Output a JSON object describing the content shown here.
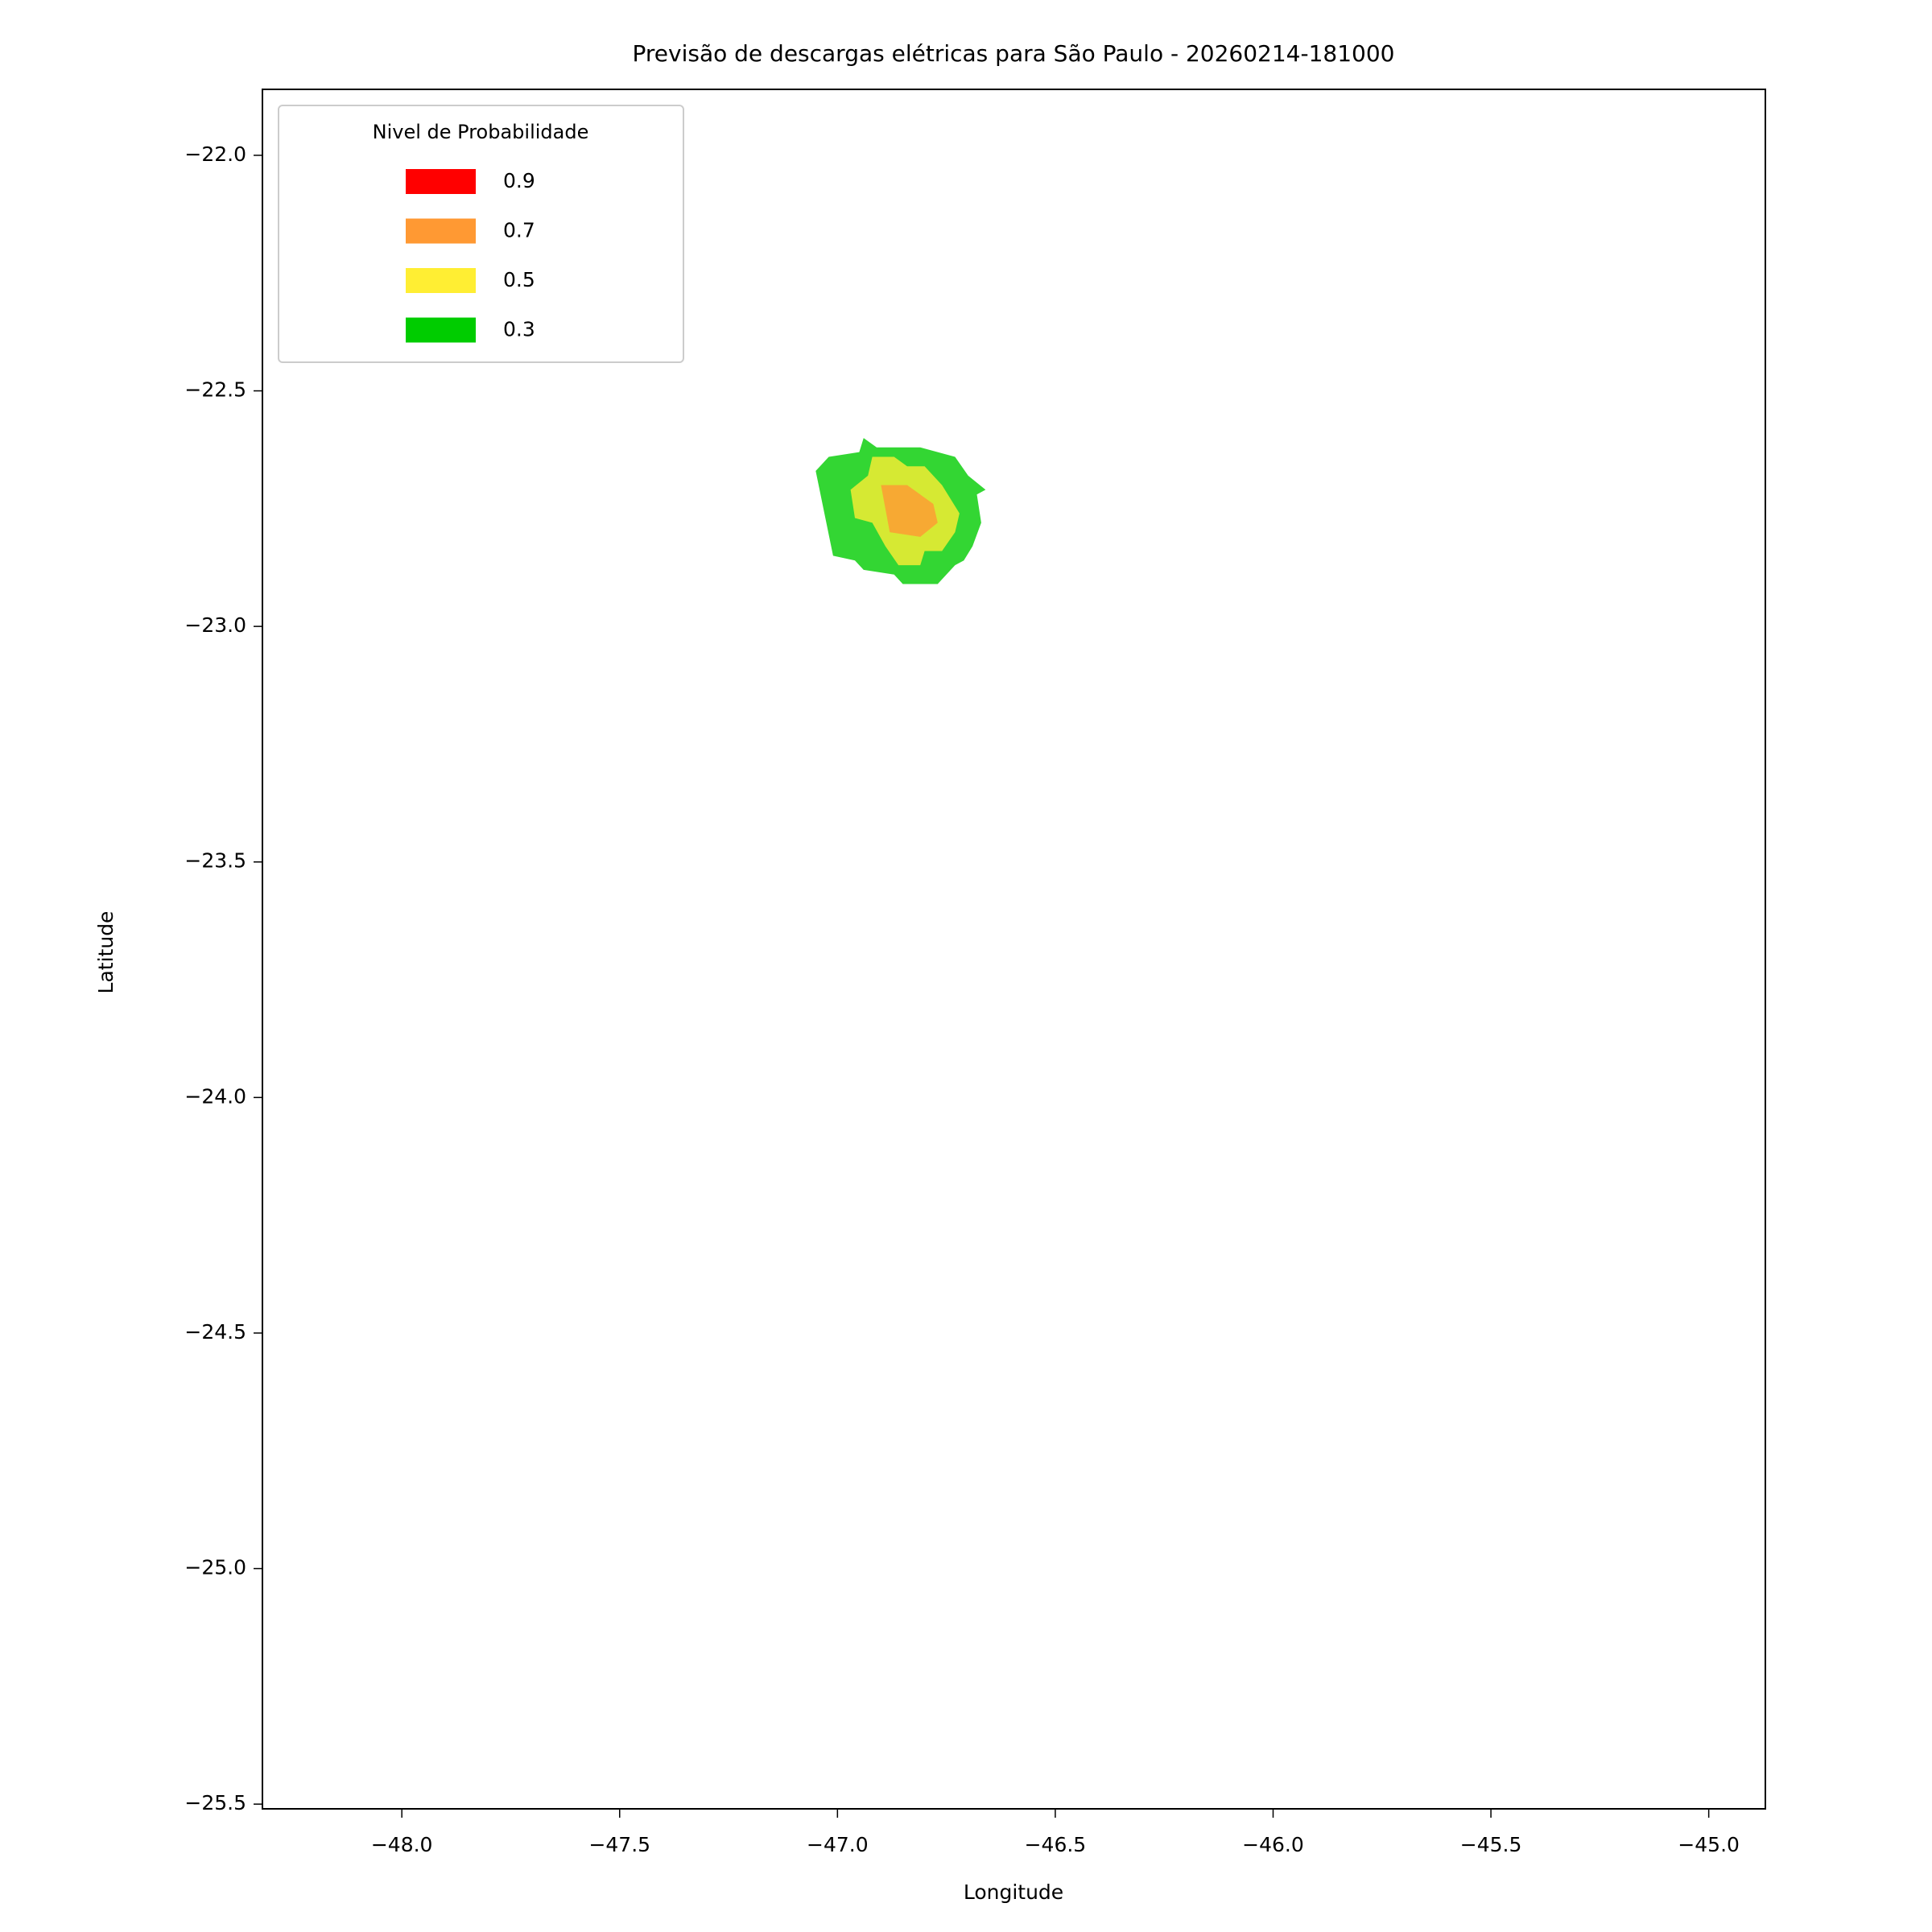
{
  "chart_data": {
    "type": "contour",
    "title": "Previsão de descargas elétricas para São Paulo - 20260214-181000",
    "x_label": "Longitude",
    "y_label": "Latitude",
    "xlim": [
      -48.32,
      -44.87
    ],
    "ylim": [
      -25.51,
      -21.86
    ],
    "xticks": [
      {
        "value": -48,
        "label": "−48.0"
      },
      {
        "value": -47.5,
        "label": "−47.5"
      },
      {
        "value": -47,
        "label": "−47.0"
      },
      {
        "value": -46.5,
        "label": "−46.5"
      },
      {
        "value": -46,
        "label": "−46.0"
      },
      {
        "value": -45.5,
        "label": "−45.5"
      },
      {
        "value": -45,
        "label": "−45.0"
      }
    ],
    "yticks": [
      {
        "value": -22,
        "label": "−22.0"
      },
      {
        "value": -22.5,
        "label": "−22.5"
      },
      {
        "value": -23,
        "label": "−23.0"
      },
      {
        "value": -23.5,
        "label": "−23.5"
      },
      {
        "value": -24,
        "label": "−24.0"
      },
      {
        "value": -24.5,
        "label": "−24.5"
      },
      {
        "value": -25,
        "label": "−25.0"
      },
      {
        "value": -25.5,
        "label": "−25.5"
      }
    ],
    "legend_title": "Nivel de Probabilidade",
    "legend_position": "upper left",
    "alpha": 0.8,
    "series": [
      {
        "name": "0.9",
        "color": "#ff0000",
        "x": [],
        "y": []
      },
      {
        "name": "0.7",
        "color": "#ff9933",
        "x": [
          -46.9,
          -46.84,
          -46.78,
          -46.77,
          -46.81,
          -46.88
        ],
        "y": [
          -22.7,
          -22.7,
          -22.74,
          -22.78,
          -22.81,
          -22.8
        ]
      },
      {
        "name": "0.5",
        "color": "#ffee33",
        "x": [
          -46.97,
          -46.93,
          -46.92,
          -46.87,
          -46.84,
          -46.8,
          -46.76,
          -46.72,
          -46.73,
          -46.76,
          -46.8,
          -46.81,
          -46.86,
          -46.89,
          -46.92,
          -46.96
        ],
        "y": [
          -22.71,
          -22.68,
          -22.64,
          -22.64,
          -22.66,
          -22.66,
          -22.7,
          -22.76,
          -22.8,
          -22.84,
          -22.84,
          -22.87,
          -22.87,
          -22.83,
          -22.78,
          -22.77
        ]
      },
      {
        "name": "0.3",
        "color": "#00cc00",
        "x": [
          -47.05,
          -47.02,
          -46.95,
          -46.94,
          -46.91,
          -46.81,
          -46.73,
          -46.7,
          -46.66,
          -46.68,
          -46.67,
          -46.69,
          -46.71,
          -46.73,
          -46.77,
          -46.85,
          -46.87,
          -46.94,
          -46.96,
          -47.01
        ],
        "y": [
          -22.67,
          -22.64,
          -22.63,
          -22.6,
          -22.62,
          -22.62,
          -22.64,
          -22.68,
          -22.71,
          -22.72,
          -22.78,
          -22.83,
          -22.86,
          -22.87,
          -22.91,
          -22.91,
          -22.89,
          -22.88,
          -22.86,
          -22.85
        ]
      }
    ]
  }
}
